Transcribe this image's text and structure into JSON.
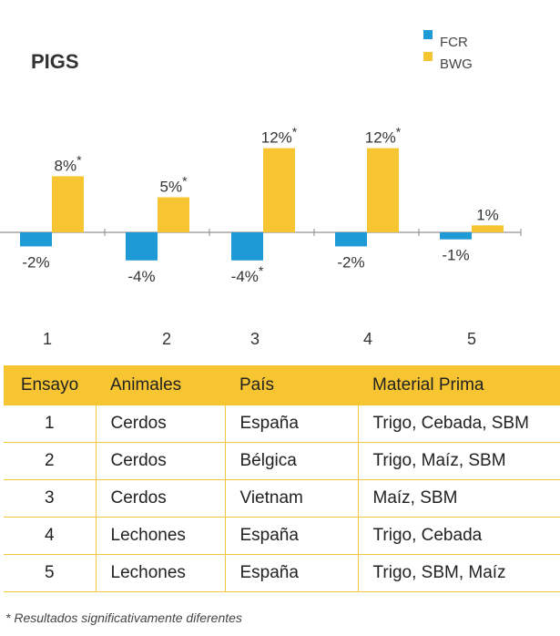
{
  "chart_data": {
    "type": "bar",
    "title": "PIGS",
    "categories": [
      "1",
      "2",
      "3",
      "4",
      "5"
    ],
    "series": [
      {
        "name": "FCR",
        "color": "#1e9ad6",
        "values": [
          -2,
          -4,
          -4,
          -2,
          -1
        ],
        "labels": [
          "-2%",
          "-4%",
          "-4%*",
          "-2%",
          "-1%"
        ]
      },
      {
        "name": "BWG",
        "color": "#f7c531",
        "values": [
          8,
          5,
          12,
          12,
          1
        ],
        "labels": [
          "8%*",
          "5%*",
          "12%*",
          "12%*",
          "1%"
        ]
      }
    ],
    "ylim": [
      -4,
      12
    ],
    "grid": false,
    "legend": "top-right"
  },
  "table": {
    "headers": [
      "Ensayo",
      "Animales",
      "País",
      "Material Prima"
    ],
    "rows": [
      [
        "1",
        "Cerdos",
        "España",
        "Trigo, Cebada, SBM"
      ],
      [
        "2",
        "Cerdos",
        "Bélgica",
        "Trigo, Maíz, SBM"
      ],
      [
        "3",
        "Cerdos",
        "Vietnam",
        "Maíz, SBM"
      ],
      [
        "4",
        "Lechones",
        "España",
        "Trigo, Cebada"
      ],
      [
        "5",
        "Lechones",
        "España",
        "Trigo, SBM, Maíz"
      ]
    ]
  },
  "footnote": "* Resultados significativamente diferentes"
}
